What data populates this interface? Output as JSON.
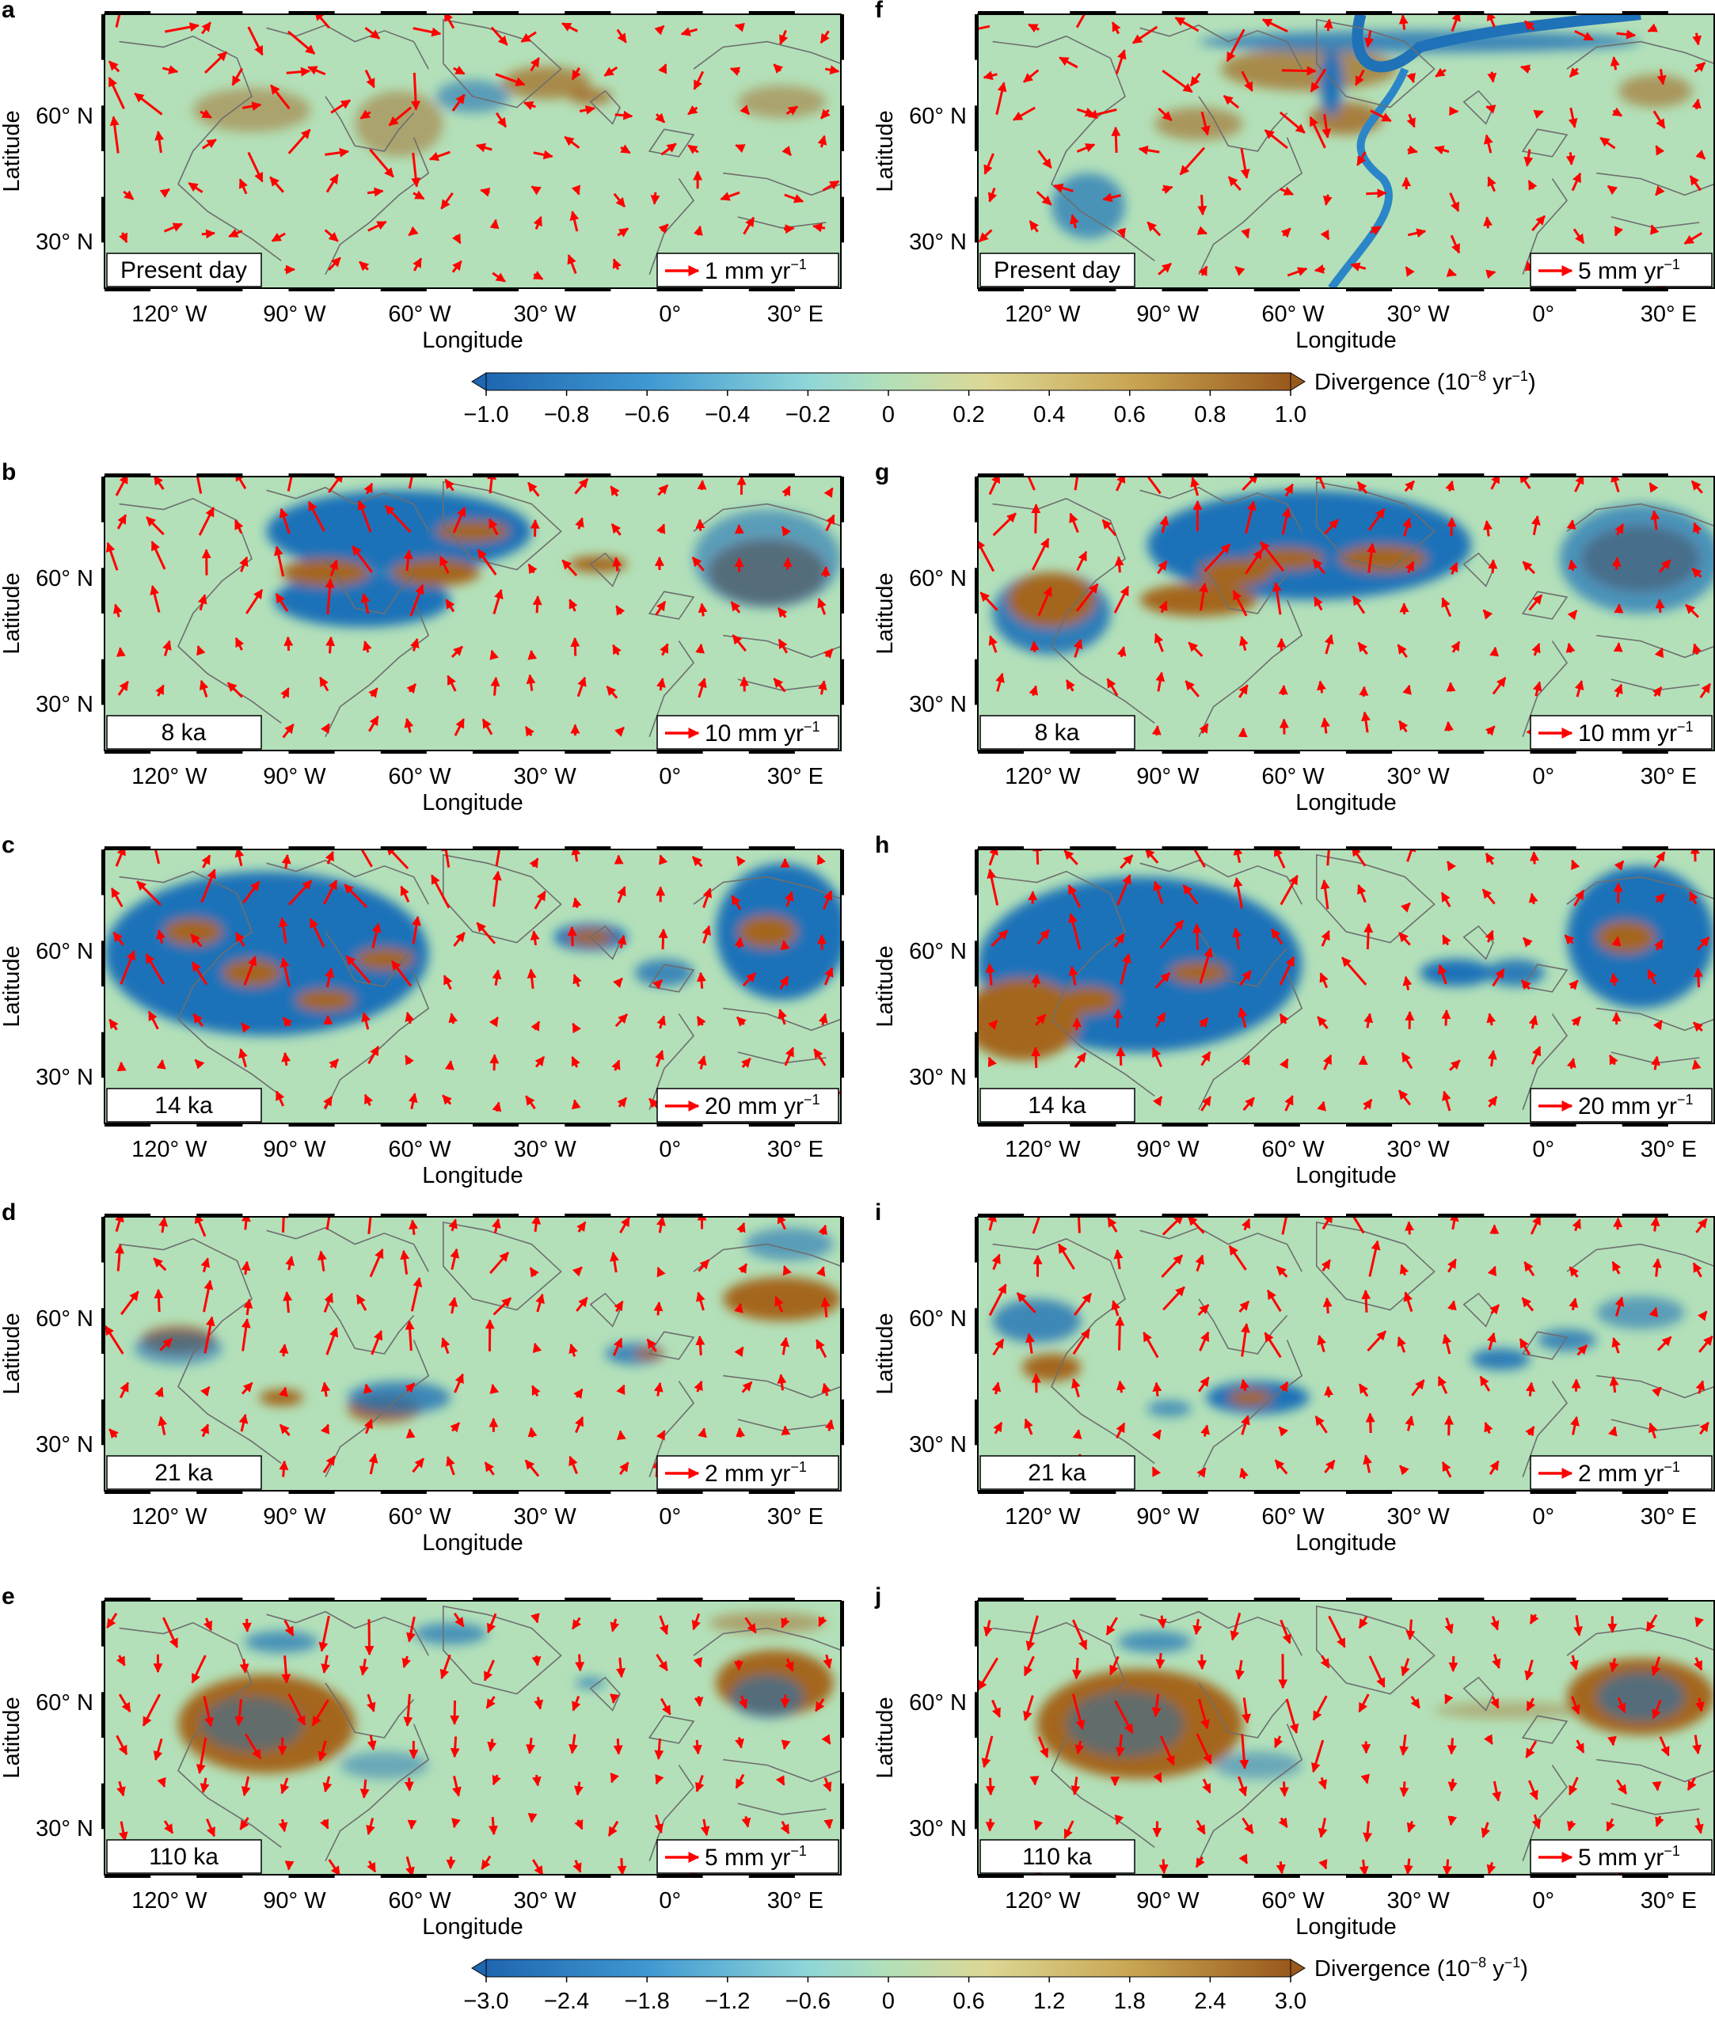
{
  "colors": {
    "background": "#b3e0b9",
    "positive": "#a4661e",
    "negative": "#1f72b8",
    "arrow": "#ff0000",
    "coast": "#6e6e6e",
    "frame": "#000000"
  },
  "axes": {
    "x_ticks": [
      "120° W",
      "90° W",
      "60° W",
      "30° W",
      "0°",
      "30° E"
    ],
    "y_ticks": [
      "60° N",
      "30° N"
    ],
    "xlabel": "Longitude",
    "ylabel": "Latitude"
  },
  "panels": [
    {
      "letter": "a",
      "period": "Present day",
      "scale": "1 mm yr",
      "scale_exp": "−1"
    },
    {
      "letter": "f",
      "period": "Present day",
      "scale": "5 mm yr",
      "scale_exp": "−1"
    },
    {
      "letter": "b",
      "period": "8 ka",
      "scale": "10 mm yr",
      "scale_exp": "−1"
    },
    {
      "letter": "g",
      "period": "8 ka",
      "scale": "10 mm yr",
      "scale_exp": "−1"
    },
    {
      "letter": "c",
      "period": "14 ka",
      "scale": "20 mm yr",
      "scale_exp": "−1"
    },
    {
      "letter": "h",
      "period": "14 ka",
      "scale": "20 mm yr",
      "scale_exp": "−1"
    },
    {
      "letter": "d",
      "period": "21 ka",
      "scale": "2 mm yr",
      "scale_exp": "−1"
    },
    {
      "letter": "i",
      "period": "21 ka",
      "scale": "2 mm yr",
      "scale_exp": "−1"
    },
    {
      "letter": "e",
      "period": "110 ka",
      "scale": "5 mm yr",
      "scale_exp": "−1"
    },
    {
      "letter": "j",
      "period": "110 ka",
      "scale": "5 mm yr",
      "scale_exp": "−1"
    }
  ],
  "colorbars": [
    {
      "ticks": [
        "−1.0",
        "−0.8",
        "−0.6",
        "−0.4",
        "−0.2",
        "0",
        "0.2",
        "0.4",
        "0.6",
        "0.8",
        "1.0"
      ],
      "label": "Divergence (10",
      "label_exp": "−8",
      "label_unit": " yr",
      "label_unit_exp": "−1",
      "label_close": ")"
    },
    {
      "ticks": [
        "−3.0",
        "−2.4",
        "−1.8",
        "−1.2",
        "−0.6",
        "0",
        "0.6",
        "1.2",
        "1.8",
        "2.4",
        "3.0"
      ],
      "label": "Divergence (10",
      "label_exp": "−8",
      "label_unit": " y",
      "label_unit_exp": "−1",
      "label_close": ")"
    }
  ]
}
